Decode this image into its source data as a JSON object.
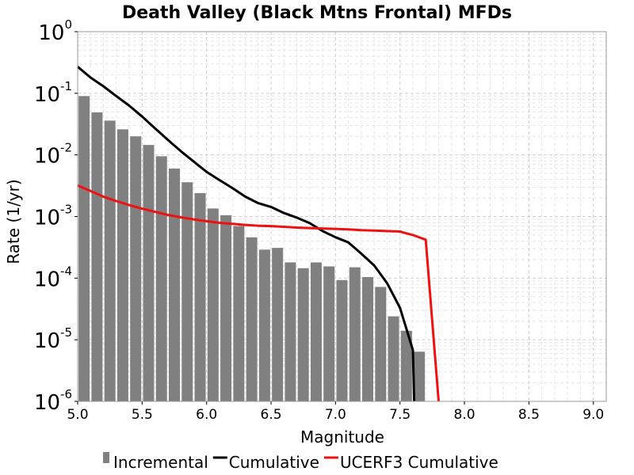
{
  "chart_data": {
    "type": "bar",
    "title": "Death Valley (Black Mtns Frontal) MFDs",
    "xlabel": "Magnitude",
    "ylabel": "Rate (1/yr)",
    "xlim": [
      5.0,
      9.1
    ],
    "ylim": [
      1e-06,
      1
    ],
    "y_scale": "log",
    "grid": true,
    "legend_position": "bottom",
    "x_ticks": [
      "5.0",
      "5.5",
      "6.0",
      "6.5",
      "7.0",
      "7.5",
      "8.0",
      "8.5",
      "9.0"
    ],
    "y_ticks": [
      {
        "base": "10",
        "exp": "0"
      },
      {
        "base": "10",
        "exp": "-1"
      },
      {
        "base": "10",
        "exp": "-2"
      },
      {
        "base": "10",
        "exp": "-3"
      },
      {
        "base": "10",
        "exp": "-4"
      },
      {
        "base": "10",
        "exp": "-5"
      },
      {
        "base": "10",
        "exp": "-6"
      }
    ],
    "series": [
      {
        "name": "Incremental",
        "kind": "bar",
        "color": "#808080",
        "x": [
          5.05,
          5.15,
          5.25,
          5.35,
          5.45,
          5.55,
          5.65,
          5.75,
          5.85,
          5.95,
          6.05,
          6.15,
          6.25,
          6.35,
          6.45,
          6.55,
          6.65,
          6.75,
          6.85,
          6.95,
          7.05,
          7.15,
          7.25,
          7.35,
          7.45,
          7.55,
          7.65
        ],
        "values": [
          0.09,
          0.049,
          0.036,
          0.026,
          0.02,
          0.0145,
          0.0095,
          0.006,
          0.0036,
          0.0024,
          0.00135,
          0.00105,
          0.0007,
          0.00046,
          0.00029,
          0.00031,
          0.00018,
          0.000145,
          0.00018,
          0.000155,
          9.3e-05,
          0.00015,
          0.000104,
          7.2e-05,
          2.4e-05,
          1.4e-05,
          6.4e-06
        ]
      },
      {
        "name": "Cumulative",
        "kind": "line",
        "color": "#000000",
        "x": [
          5.0,
          5.1,
          5.2,
          5.3,
          5.4,
          5.5,
          5.6,
          5.7,
          5.8,
          5.9,
          6.0,
          6.1,
          6.2,
          6.3,
          6.4,
          6.5,
          6.6,
          6.7,
          6.8,
          6.9,
          7.0,
          7.1,
          7.2,
          7.3,
          7.4,
          7.5,
          7.6,
          7.61
        ],
        "values": [
          0.27,
          0.18,
          0.13,
          0.09,
          0.063,
          0.042,
          0.027,
          0.0175,
          0.0115,
          0.0078,
          0.0053,
          0.0039,
          0.0029,
          0.0021,
          0.00165,
          0.00143,
          0.00114,
          0.00096,
          0.00078,
          0.00058,
          0.00046,
          0.00038,
          0.00025,
          0.00016,
          8.3e-05,
          3.3e-05,
          6.8e-06,
          9e-07
        ]
      },
      {
        "name": "UCERF3 Cumulative",
        "kind": "line",
        "color": "#ee1111",
        "x": [
          5.0,
          5.1,
          5.2,
          5.3,
          5.4,
          5.5,
          5.6,
          5.7,
          5.8,
          5.9,
          6.0,
          6.1,
          6.2,
          6.3,
          6.4,
          6.5,
          6.6,
          6.7,
          6.8,
          6.9,
          7.0,
          7.1,
          7.2,
          7.3,
          7.4,
          7.5,
          7.6,
          7.7,
          7.8
        ],
        "values": [
          0.0032,
          0.0026,
          0.0021,
          0.00178,
          0.00153,
          0.00134,
          0.00119,
          0.00106,
          0.00097,
          0.0009,
          0.00084,
          0.00079,
          0.00076,
          0.00073,
          0.00071,
          0.0007,
          0.00068,
          0.00066,
          0.00065,
          0.00064,
          0.00063,
          0.00062,
          0.0006,
          0.00059,
          0.00058,
          0.00057,
          0.0005,
          0.00042,
          9e-07
        ]
      }
    ]
  }
}
